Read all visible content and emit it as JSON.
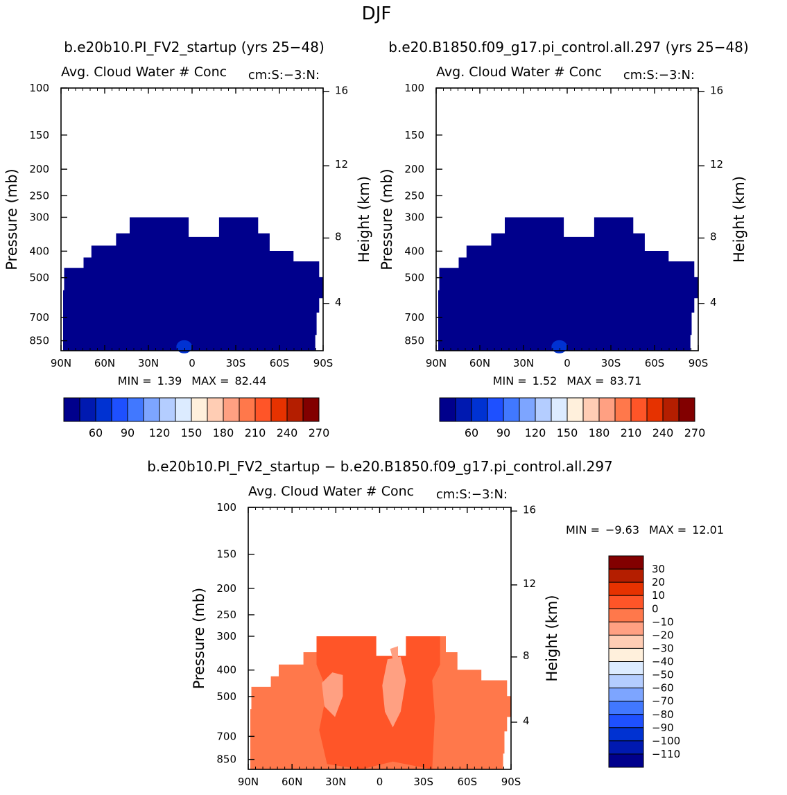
{
  "page_title": "DJF",
  "colors": {
    "plot_bg": "#ffffff",
    "abs_palette": [
      "#00008c",
      "#0019b0",
      "#0032d2",
      "#1e50ff",
      "#4178ff",
      "#7da5ff",
      "#b4cdff",
      "#dcebff",
      "#fff0dc",
      "#ffcdb4",
      "#ffa082",
      "#ff784b",
      "#ff5528",
      "#e63200",
      "#b41e00",
      "#820000"
    ],
    "diff_palette": [
      "#820000",
      "#b41e00",
      "#e63200",
      "#ff5528",
      "#ff784b",
      "#ffa082",
      "#ffcdb4",
      "#fff0dc",
      "#dcebff",
      "#b4cdff",
      "#7da5ff",
      "#4178ff",
      "#1e50ff",
      "#0032d2",
      "#0019b0",
      "#00008c"
    ]
  },
  "chart_data": [
    {
      "id": "left",
      "type": "heatmap",
      "title": "b.e20b10.PI_FV2_startup (yrs 25−48)",
      "subtitle": "Avg. Cloud Water # Conc",
      "units": "cm:S:−3:N:",
      "ylabel": "Pressure (mb)",
      "y2label": "Height (km)",
      "xticks": [
        "90N",
        "60N",
        "30N",
        "0",
        "30S",
        "60S",
        "90S"
      ],
      "yticks": [
        "100",
        "150",
        "200",
        "250",
        "300",
        "400",
        "500",
        "700",
        "850"
      ],
      "y2ticks": [
        "16",
        "12",
        "8",
        "4"
      ],
      "stats": {
        "min_label": "MIN =",
        "min": "1.39",
        "max_label": "MAX =",
        "max": "82.44"
      },
      "colorbar_labels": [
        "60",
        "90",
        "120",
        "150",
        "180",
        "210",
        "240",
        "270"
      ],
      "fill_color": "#00008c",
      "feature_color": "#0032d2"
    },
    {
      "id": "right",
      "type": "heatmap",
      "title": "b.e20.B1850.f09_g17.pi_control.all.297 (yrs 25−48)",
      "subtitle": "Avg. Cloud Water # Conc",
      "units": "cm:S:−3:N:",
      "ylabel": "Pressure (mb)",
      "y2label": "Height (km)",
      "xticks": [
        "90N",
        "60N",
        "30N",
        "0",
        "30S",
        "60S",
        "90S"
      ],
      "yticks": [
        "100",
        "150",
        "200",
        "250",
        "300",
        "400",
        "500",
        "700",
        "850"
      ],
      "y2ticks": [
        "16",
        "12",
        "8",
        "4"
      ],
      "stats": {
        "min_label": "MIN =",
        "min": "1.52",
        "max_label": "MAX =",
        "max": "83.71"
      },
      "colorbar_labels": [
        "60",
        "90",
        "120",
        "150",
        "180",
        "210",
        "240",
        "270"
      ],
      "fill_color": "#00008c",
      "feature_color": "#0032d2"
    },
    {
      "id": "diff",
      "type": "heatmap",
      "title": "b.e20b10.PI_FV2_startup − b.e20.B1850.f09_g17.pi_control.all.297",
      "subtitle": "Avg. Cloud Water # Conc",
      "units": "cm:S:−3:N:",
      "ylabel": "Pressure (mb)",
      "y2label": "Height (km)",
      "xticks": [
        "90N",
        "60N",
        "30N",
        "0",
        "30S",
        "60S",
        "90S"
      ],
      "yticks": [
        "100",
        "150",
        "200",
        "250",
        "300",
        "400",
        "500",
        "700",
        "850"
      ],
      "y2ticks": [
        "16",
        "12",
        "8",
        "4"
      ],
      "stats": {
        "min_label": "MIN =",
        "min": "−9.63",
        "max_label": "MAX =",
        "max": "12.01"
      },
      "colorbar_labels": [
        "30",
        "20",
        "10",
        "0",
        "−10",
        "−20",
        "−30",
        "−40",
        "−50",
        "−60",
        "−70",
        "−80",
        "−90",
        "−100",
        "−110"
      ],
      "fill_color": "#ff784b",
      "feature_color": "#ff5528",
      "feature2_color": "#ffa082"
    }
  ]
}
